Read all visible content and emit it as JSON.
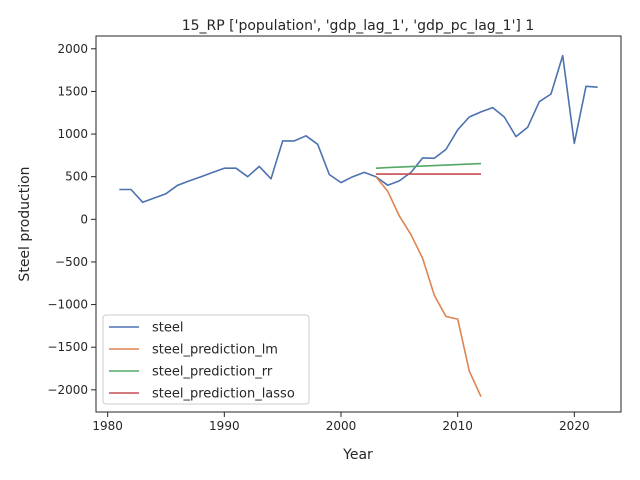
{
  "chart_data": {
    "type": "line",
    "title": "15_RP ['population', 'gdp_lag_1', 'gdp_pc_lag_1'] 1",
    "xlabel": "Year",
    "ylabel": "Steel production",
    "xlim": [
      1979,
      2024
    ],
    "ylim": [
      -2260,
      2150
    ],
    "xticks": [
      1980,
      1990,
      2000,
      2010,
      2020
    ],
    "yticks": [
      -2000,
      -1500,
      -1000,
      -500,
      0,
      500,
      1000,
      1500,
      2000
    ],
    "ytick_labels": [
      "−2000",
      "−1500",
      "−1000",
      "−500",
      "0",
      "500",
      "1000",
      "1500",
      "2000"
    ],
    "grid": false,
    "legend_position": "lower left",
    "series": [
      {
        "name": "steel",
        "color": "#4c72b0",
        "x": [
          1981,
          1982,
          1983,
          1984,
          1985,
          1986,
          1987,
          1988,
          1989,
          1990,
          1991,
          1992,
          1993,
          1994,
          1995,
          1996,
          1997,
          1998,
          1999,
          2000,
          2001,
          2002,
          2003,
          2004,
          2005,
          2006,
          2007,
          2008,
          2009,
          2010,
          2011,
          2012,
          2013,
          2014,
          2015,
          2016,
          2017,
          2018,
          2019,
          2020,
          2021,
          2022
        ],
        "y": [
          350,
          350,
          200,
          250,
          300,
          400,
          450,
          500,
          550,
          600,
          600,
          500,
          620,
          475,
          920,
          920,
          980,
          880,
          525,
          430,
          500,
          550,
          500,
          400,
          450,
          550,
          720,
          715,
          820,
          1050,
          1200,
          1260,
          1310,
          1200,
          970,
          1080,
          1380,
          1470,
          1920,
          890,
          1560,
          1550
        ]
      },
      {
        "name": "steel_prediction_lm",
        "color": "#dd8452",
        "x": [
          2003,
          2004,
          2005,
          2006,
          2007,
          2008,
          2009,
          2010,
          2011,
          2012
        ],
        "y": [
          500,
          330,
          40,
          -180,
          -460,
          -890,
          -1140,
          -1170,
          -1780,
          -2080
        ]
      },
      {
        "name": "steel_prediction_rr",
        "color": "#55a868",
        "x": [
          2003,
          2004,
          2005,
          2006,
          2007,
          2008,
          2009,
          2010,
          2011,
          2012
        ],
        "y": [
          600,
          606,
          612,
          618,
          624,
          630,
          636,
          642,
          648,
          654
        ]
      },
      {
        "name": "steel_prediction_lasso",
        "color": "#c44e52",
        "x": [
          2003,
          2004,
          2005,
          2006,
          2007,
          2008,
          2009,
          2010,
          2011,
          2012
        ],
        "y": [
          530,
          530,
          530,
          530,
          530,
          530,
          530,
          530,
          530,
          530
        ]
      }
    ]
  }
}
